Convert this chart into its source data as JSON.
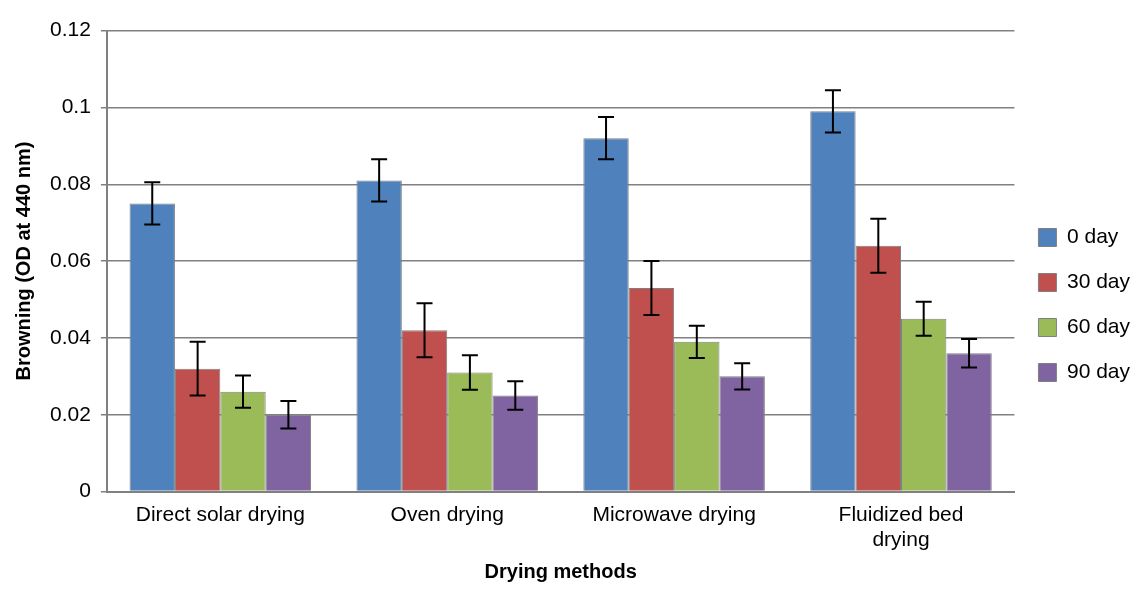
{
  "chart_data": {
    "type": "bar",
    "xlabel": "Drying methods",
    "ylabel": "Browning (OD at 440 nm)",
    "categories": [
      "Direct solar drying",
      "Oven drying",
      "Microwave drying",
      "Fluidized bed drying"
    ],
    "series": [
      {
        "name": "0 day",
        "color": "#4f81bd",
        "values": [
          0.075,
          0.081,
          0.092,
          0.099
        ],
        "errors": [
          0.0055,
          0.0055,
          0.0055,
          0.0055
        ]
      },
      {
        "name": "30 day",
        "color": "#c0504d",
        "values": [
          0.032,
          0.042,
          0.053,
          0.064
        ],
        "errors": [
          0.007,
          0.007,
          0.007,
          0.007
        ]
      },
      {
        "name": "60 day",
        "color": "#9bbb59",
        "values": [
          0.026,
          0.031,
          0.039,
          0.045
        ],
        "errors": [
          0.0042,
          0.0045,
          0.0042,
          0.0044
        ]
      },
      {
        "name": "90 day",
        "color": "#8064a2",
        "values": [
          0.02,
          0.025,
          0.03,
          0.036
        ],
        "errors": [
          0.0036,
          0.0037,
          0.0034,
          0.0037
        ]
      }
    ],
    "ylim": [
      0,
      0.12
    ],
    "yticks": [
      0,
      0.02,
      0.04,
      0.06,
      0.08,
      0.1,
      0.12
    ],
    "grid": "y",
    "legend": "right"
  }
}
